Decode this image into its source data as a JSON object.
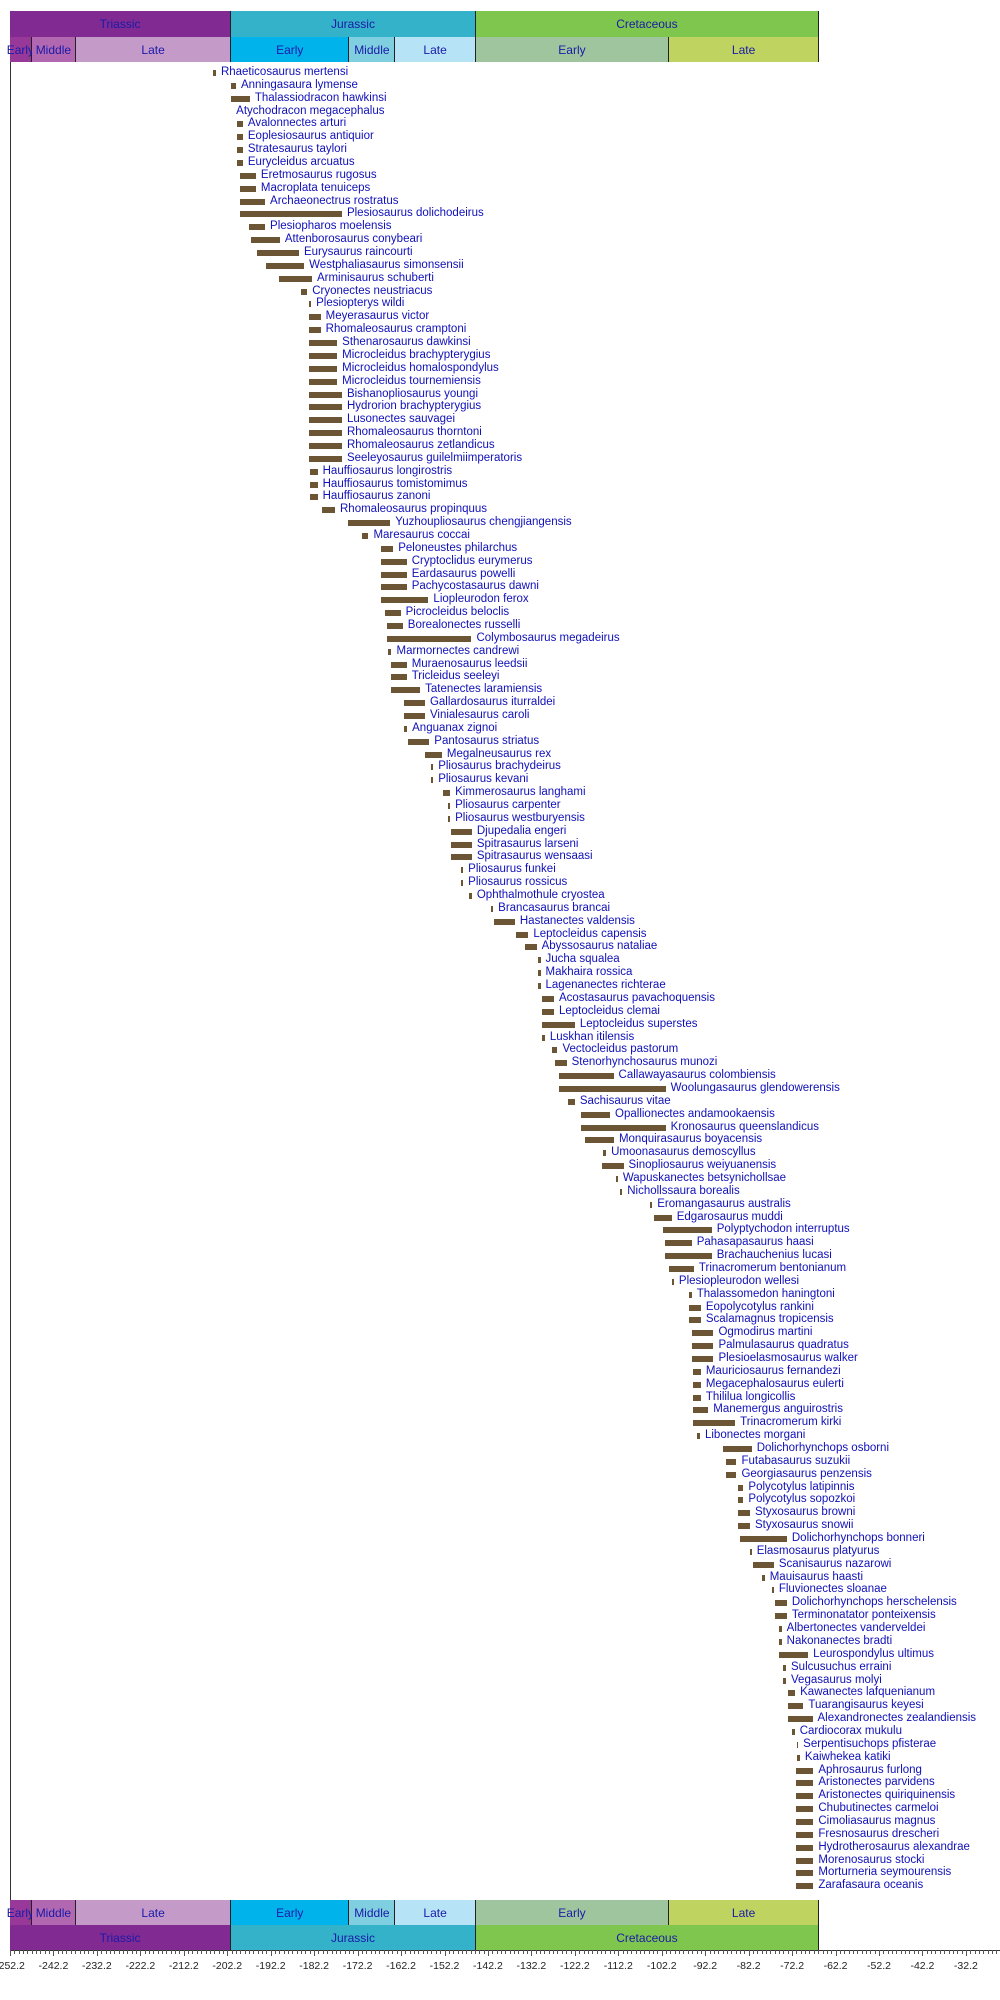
{
  "colors": {
    "bar": "#6b5535",
    "label": "#1010b8"
  },
  "chart_data": {
    "type": "bar",
    "orientation": "horizontal-range",
    "x_unit": "Ma",
    "xlim": [
      -252.2,
      -22.2
    ],
    "tick_labels": [
      "-252.2",
      "-242.2",
      "-232.2",
      "-222.2",
      "-212.2",
      "-202.2",
      "-192.2",
      "-182.2",
      "-172.2",
      "-162.2",
      "-152.2",
      "-142.2",
      "-132.2",
      "-122.2",
      "-112.2",
      "-102.2",
      "-92.2",
      "-82.2",
      "-72.2",
      "-62.2",
      "-52.2",
      "-42.2",
      "-32.2"
    ],
    "periods": [
      {
        "name": "Triassic",
        "start": 252.2,
        "end": 201.3,
        "color": "#812b92"
      },
      {
        "name": "Jurassic",
        "start": 201.3,
        "end": 145,
        "color": "#34b2c9"
      },
      {
        "name": "Cretaceous",
        "start": 145,
        "end": 66,
        "color": "#7fc64e"
      }
    ],
    "epochs": [
      {
        "name": "Early",
        "start": 252.2,
        "end": 247.2,
        "color": "#983999"
      },
      {
        "name": "Middle",
        "start": 247.2,
        "end": 237,
        "color": "#b168b1"
      },
      {
        "name": "Late",
        "start": 237,
        "end": 201.3,
        "color": "#c49ac8"
      },
      {
        "name": "Early",
        "start": 201.3,
        "end": 174.1,
        "color": "#00b4eb"
      },
      {
        "name": "Middle",
        "start": 174.1,
        "end": 163.5,
        "color": "#80cfe0"
      },
      {
        "name": "Late",
        "start": 163.5,
        "end": 145,
        "color": "#b6e3f5"
      },
      {
        "name": "Early",
        "start": 145,
        "end": 100.5,
        "color": "#9fc59e"
      },
      {
        "name": "Late",
        "start": 100.5,
        "end": 66,
        "color": "#bfd360"
      }
    ],
    "taxa": [
      [
        "Rhaeticosaurus mertensi",
        205.5,
        204.8
      ],
      [
        "Anningasaura lymense",
        201.3,
        200.2
      ],
      [
        "Thalassiodracon hawkinsi",
        201.3,
        197
      ],
      [
        "Atychodracon megacephalus",
        201.3,
        201.3
      ],
      [
        "Avalonnectes arturi",
        200,
        198.6
      ],
      [
        "Eoplesiosaurus antiquior",
        200,
        198.6
      ],
      [
        "Stratesaurus taylori",
        200,
        198.6
      ],
      [
        "Eurycleidus arcuatus",
        200,
        198.6
      ],
      [
        "Eretmosaurus rugosus",
        199.3,
        195.6
      ],
      [
        "Macroplata tenuiceps",
        199.3,
        195.6
      ],
      [
        "Archaeonectrus rostratus",
        199.3,
        193.5
      ],
      [
        "Plesiosaurus dolichodeirus",
        199.3,
        175.8
      ],
      [
        "Plesiopharos moelensis",
        197.2,
        193.5
      ],
      [
        "Attenborosaurus conybeari",
        196.7,
        190.1
      ],
      [
        "Eurysaurus raincourti",
        195.3,
        185.7
      ],
      [
        "Westphaliasaurus simonsensii",
        193.3,
        184.5
      ],
      [
        "Arminisaurus schuberti",
        190.3,
        182.7
      ],
      [
        "Cryonectes neustriacus",
        185.3,
        183.8
      ],
      [
        "Plesiopterys wildi",
        183.3,
        182.9
      ],
      [
        "Meyerasaurus victor",
        183.3,
        180.7
      ],
      [
        "Rhomaleosaurus cramptoni",
        183.3,
        180.7
      ],
      [
        "Sthenarosaurus dawkinsi",
        183.3,
        176.9
      ],
      [
        "Microcleidus brachypterygius",
        183.3,
        176.9
      ],
      [
        "Microcleidus homalospondylus",
        183.3,
        176.9
      ],
      [
        "Microcleidus tournemiensis",
        183.3,
        176.9
      ],
      [
        "Bishanopliosaurus youngi",
        183.3,
        175.8
      ],
      [
        "Hydrorion brachypterygius",
        183.3,
        175.8
      ],
      [
        "Lusonectes sauvagei",
        183.3,
        175.8
      ],
      [
        "Rhomaleosaurus thorntoni",
        183.3,
        175.8
      ],
      [
        "Rhomaleosaurus zetlandicus",
        183.3,
        175.8
      ],
      [
        "Seeleyosaurus guilelmiimperatoris",
        183.3,
        175.8
      ],
      [
        "Hauffiosaurus longirostris",
        183.1,
        181.4
      ],
      [
        "Hauffiosaurus tomistomimus",
        183.1,
        181.4
      ],
      [
        "Hauffiosaurus zanoni",
        183.1,
        181.4
      ],
      [
        "Rhomaleosaurus propinquus",
        180.5,
        177.4
      ],
      [
        "Yuzhoupliosaurus chengjiangensis",
        174.5,
        164.7
      ],
      [
        "Maresaurus coccai",
        171.3,
        169.7
      ],
      [
        "Peloneustes philarchus",
        166.7,
        164
      ],
      [
        "Cryptoclidus eurymerus",
        166.7,
        160.9
      ],
      [
        "Eardasaurus powelli",
        166.7,
        160.9
      ],
      [
        "Pachycostasaurus dawni",
        166.7,
        160.9
      ],
      [
        "Liopleurodon ferox",
        166.7,
        155.9
      ],
      [
        "Picrocleidus beloclis",
        165.9,
        162.3
      ],
      [
        "Borealonectes russelli",
        165.4,
        161.8
      ],
      [
        "Colymbosaurus megadeirus",
        165.4,
        146
      ],
      [
        "Marmornectes candrewi",
        165.1,
        164.4
      ],
      [
        "Muraenosaurus leedsii",
        164.5,
        160.9
      ],
      [
        "Tricleidus seeleyi",
        164.5,
        160.9
      ],
      [
        "Tatenectes laramiensis",
        164.5,
        157.8
      ],
      [
        "Gallardosaurus iturraldei",
        161.5,
        156.7
      ],
      [
        "Vinialesaurus caroli",
        161.5,
        156.7
      ],
      [
        "Anguanax zignoi",
        161.5,
        160.8
      ],
      [
        "Pantosaurus striatus",
        160.5,
        155.7
      ],
      [
        "Megalneusaurus rex",
        156.7,
        152.8
      ],
      [
        "Pliosaurus brachydeirus",
        155.4,
        154.8
      ],
      [
        "Pliosaurus kevani",
        155.4,
        154.8
      ],
      [
        "Kimmerosaurus langhami",
        152.5,
        150.9
      ],
      [
        "Pliosaurus carpenter",
        151.5,
        150.9
      ],
      [
        "Pliosaurus westburyensis",
        151.5,
        150.9
      ],
      [
        "Djupedalia engeri",
        150.7,
        145.9
      ],
      [
        "Spitrasaurus larseni",
        150.7,
        145.9
      ],
      [
        "Spitrasaurus wensaasi",
        150.7,
        145.9
      ],
      [
        "Pliosaurus funkei",
        148.5,
        147.9
      ],
      [
        "Pliosaurus rossicus",
        148.5,
        147.9
      ],
      [
        "Ophthalmothule cryostea",
        146.5,
        145.9
      ],
      [
        "Brancasaurus brancai",
        141.6,
        141
      ],
      [
        "Hastanectes valdensis",
        140.8,
        136
      ],
      [
        "Leptocleidus capensis",
        135.7,
        132.9
      ],
      [
        "Abyssosaurus nataliae",
        133.7,
        131
      ],
      [
        "Jucha squalea",
        130.6,
        130.1
      ],
      [
        "Makhaira rossica",
        130.6,
        130.1
      ],
      [
        "Lagenanectes richterae",
        130.6,
        130.1
      ],
      [
        "Acostasaurus pavachoquensis",
        129.7,
        127
      ],
      [
        "Leptocleidus clemai",
        129.7,
        127
      ],
      [
        "Leptocleidus superstes",
        129.7,
        122.2
      ],
      [
        "Luskhan itilensis",
        129.7,
        129.1
      ],
      [
        "Vectocleidus pastorum",
        127.5,
        126.2
      ],
      [
        "Stenorhynchosaurus munozi",
        126.8,
        124.1
      ],
      [
        "Callawayasaurus colombiensis",
        125.8,
        113.3
      ],
      [
        "Woolungasaurus glendowerensis",
        125.8,
        101.3
      ],
      [
        "Sachisaurus vitae",
        123.7,
        122.2
      ],
      [
        "Opallionectes andamookaensis",
        120.8,
        114.1
      ],
      [
        "Kronosaurus queenslandicus",
        120.8,
        101.3
      ],
      [
        "Monquirasaurus boyacensis",
        119.9,
        113.2
      ],
      [
        "Umoonasaurus demoscyllus",
        115.7,
        115
      ],
      [
        "Sinopliosaurus weiyuanensis",
        115.9,
        111
      ],
      [
        "Wapuskanectes betsynichollsae",
        112.8,
        112.3
      ],
      [
        "Nichollssaura borealis",
        111.8,
        111.3
      ],
      [
        "Eromangasaurus australis",
        104.9,
        104.4
      ],
      [
        "Edgarosaurus muddi",
        104,
        99.9
      ],
      [
        "Polyptychodon interruptus",
        101.8,
        90.7
      ],
      [
        "Pahasapasaurus haasi",
        101.5,
        95.3
      ],
      [
        "Brachauchenius lucasi",
        101.5,
        90.7
      ],
      [
        "Trinacromerum bentonianum",
        100.5,
        94.8
      ],
      [
        "Plesiopleurodon wellesi",
        99.9,
        99.4
      ],
      [
        "Thalassomedon haningtoni",
        95.9,
        95.3
      ],
      [
        "Eopolycotylus rankini",
        95.9,
        93.2
      ],
      [
        "Scalamagnus tropicensis",
        95.9,
        93.2
      ],
      [
        "Ogmodirus martini",
        95.2,
        90.3
      ],
      [
        "Palmulasaurus quadratus",
        95.2,
        90.3
      ],
      [
        "Plesioelasmosaurus walker",
        95.2,
        90.3
      ],
      [
        "Mauriciosaurus fernandezi",
        94.9,
        93.2
      ],
      [
        "Megacephalosaurus eulerti",
        94.9,
        93.2
      ],
      [
        "Thililua longicollis",
        94.9,
        93.2
      ],
      [
        "Manemergus anguirostris",
        94.9,
        91.5
      ],
      [
        "Trinacromerum kirki",
        94.9,
        85.3
      ],
      [
        "Libonectes morgani",
        94,
        93.4
      ],
      [
        "Dolichorhynchops osborni",
        88,
        81.5
      ],
      [
        "Futabasaurus suzukii",
        87.4,
        85
      ],
      [
        "Georgiasaurus penzensis",
        87.4,
        85
      ],
      [
        "Polycotylus latipinnis",
        84.6,
        83.4
      ],
      [
        "Polycotylus sopozkoi",
        84.6,
        83.4
      ],
      [
        "Styxosaurus browni",
        84.6,
        81.9
      ],
      [
        "Styxosaurus snowii",
        84.6,
        81.9
      ],
      [
        "Dolichorhynchops bonneri",
        84.2,
        73.4
      ],
      [
        "Elasmosaurus platyurus",
        82,
        81.5
      ],
      [
        "Scanisaurus nazarowi",
        81.1,
        76.4
      ],
      [
        "Mauisaurus haasti",
        79.1,
        78.5
      ],
      [
        "Fluvionectes sloanae",
        76.9,
        76.4
      ],
      [
        "Dolichorhynchops herschelensis",
        76.1,
        73.4
      ],
      [
        "Terminonatator ponteixensis",
        76.1,
        73.4
      ],
      [
        "Albertonectes vanderveldei",
        75.1,
        74.6
      ],
      [
        "Nakonanectes bradti",
        75.1,
        74.6
      ],
      [
        "Leurospondylus ultimus",
        75.1,
        68.5
      ],
      [
        "Sulcusuchus erraini",
        74.2,
        73.6
      ],
      [
        "Vegasaurus molyi",
        74.2,
        73.6
      ],
      [
        "Kawanectes lafquenianum",
        73.1,
        71.5
      ],
      [
        "Tuarangisaurus keyesi",
        73.1,
        69.6
      ],
      [
        "Alexandronectes zealandiensis",
        73.1,
        67.5
      ],
      [
        "Cardiocorax mukulu",
        72.2,
        71.6
      ],
      [
        "Serpentisuchops pfisterae",
        71.1,
        70.8
      ],
      [
        "Kaiwhekea katiki",
        71.1,
        70.4
      ],
      [
        "Aphrosaurus furlong",
        71.3,
        67.3
      ],
      [
        "Aristonectes parvidens",
        71.3,
        67.3
      ],
      [
        "Aristonectes quiriquinensis",
        71.3,
        67.3
      ],
      [
        "Chubutinectes carmeloi",
        71.3,
        67.3
      ],
      [
        "Cimoliasaurus magnus",
        71.3,
        67.3
      ],
      [
        "Fresnosaurus drescheri",
        71.3,
        67.3
      ],
      [
        "Hydrotherosaurus alexandrae",
        71.3,
        67.3
      ],
      [
        "Morenosaurus stocki",
        71.3,
        67.3
      ],
      [
        "Morturneria seymourensis",
        71.3,
        67.3
      ],
      [
        "Zarafasaura oceanis",
        71.3,
        67.3
      ]
    ]
  }
}
